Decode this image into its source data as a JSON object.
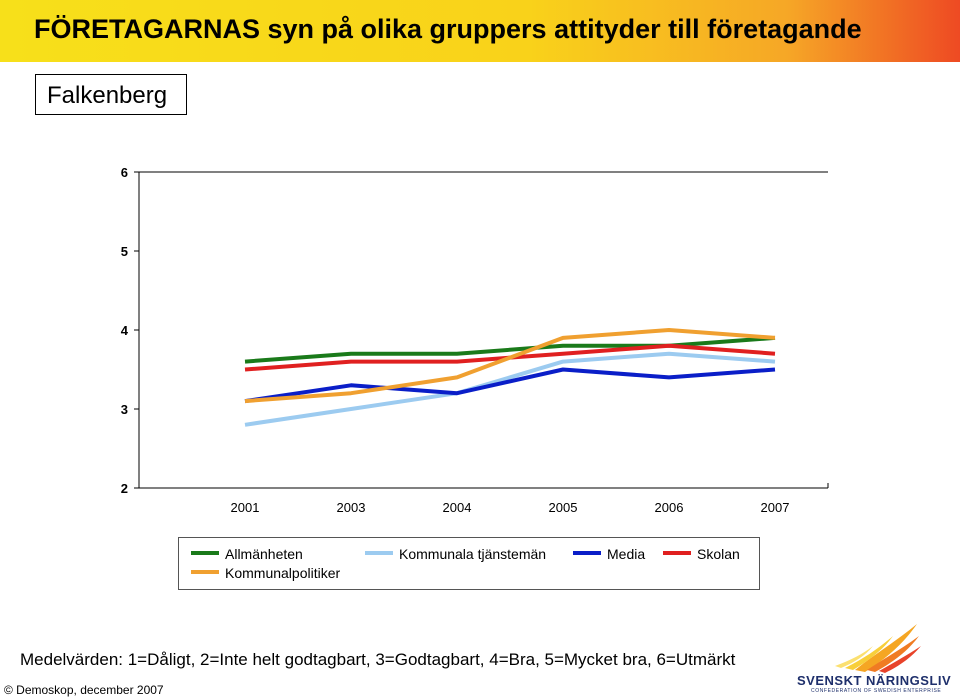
{
  "header": {
    "title": "FÖRETAGARNAS syn på olika gruppers attityder till företagande"
  },
  "subtitle_box": {
    "label": "Falkenberg"
  },
  "chart_data": {
    "type": "line",
    "categories": [
      "2001",
      "2003",
      "2004",
      "2005",
      "2006",
      "2007"
    ],
    "ylim": [
      2,
      6
    ],
    "yticks": [
      "6",
      "5",
      "4",
      "3",
      "2"
    ],
    "grid": false,
    "legend_position": "bottom",
    "series": [
      {
        "name": "Allmänheten",
        "color": "#1a7a1a",
        "values": [
          3.6,
          3.7,
          3.7,
          3.8,
          3.8,
          3.9
        ]
      },
      {
        "name": "Kommunala tjänstemän",
        "color": "#9ccbf0",
        "values": [
          2.8,
          3.0,
          3.2,
          3.6,
          3.7,
          3.6
        ]
      },
      {
        "name": "Media",
        "color": "#0a1ec8",
        "values": [
          3.1,
          3.3,
          3.2,
          3.5,
          3.4,
          3.5
        ]
      },
      {
        "name": "Skolan",
        "color": "#e02020",
        "values": [
          3.5,
          3.6,
          3.6,
          3.7,
          3.8,
          3.7
        ]
      },
      {
        "name": "Kommunalpolitiker",
        "color": "#f0a030",
        "values": [
          3.1,
          3.2,
          3.4,
          3.9,
          4.0,
          3.9
        ]
      }
    ]
  },
  "footer": {
    "note": "Medelvärden: 1=Dåligt, 2=Inte helt godtagbart, 3=Godtagbart, 4=Bra, 5=Mycket bra, 6=Utmärkt",
    "copyright": "© Demoskop, december 2007",
    "logo_name": "SVENSKT NÄRINGSLIV",
    "logo_tagline": "CONFEDERATION OF SWEDISH ENTERPRISE"
  }
}
